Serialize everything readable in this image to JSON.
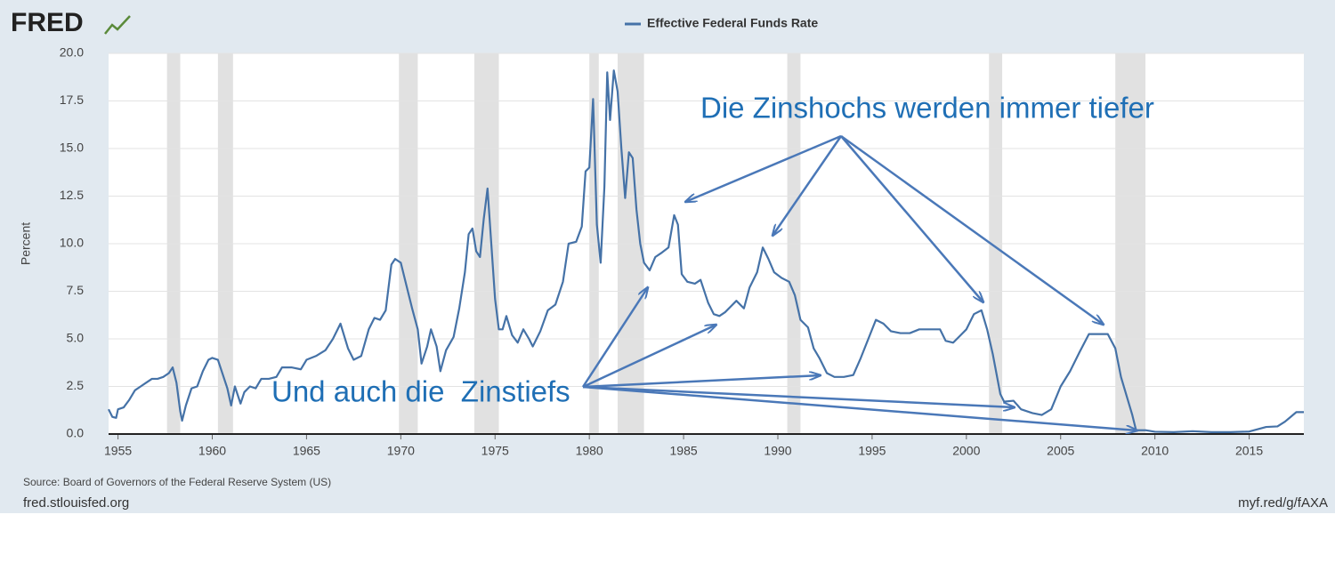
{
  "chart_data": {
    "type": "line",
    "logo": "FRED",
    "ylabel": "Percent",
    "source": "Source: Board of Governors of the Federal Reserve System (US)",
    "footer_left": "fred.stlouisfed.org",
    "footer_right": "myf.red/g/fAXA",
    "annotations": [
      "Die Zinshochs werden immer tiefer",
      "Und auch die  Zinstiefs"
    ],
    "xlim": [
      1954.5,
      2017.9
    ],
    "xticks": [
      1955,
      1960,
      1965,
      1970,
      1975,
      1980,
      1985,
      1990,
      1995,
      2000,
      2005,
      2010,
      2015
    ],
    "ylim": [
      0,
      20
    ],
    "yticks": [
      {
        "value": 0,
        "label": "0.0"
      },
      2.5,
      {
        "value": 5,
        "label": "5.0"
      },
      7.5,
      {
        "value": 10,
        "label": "10.0"
      },
      12.5,
      {
        "value": 15,
        "label": "15.0"
      },
      17.5,
      {
        "value": 20,
        "label": "20.0"
      }
    ],
    "grid": true,
    "recessions": [
      [
        1957.6,
        1958.3
      ],
      [
        1960.3,
        1961.1
      ],
      [
        1969.9,
        1970.9
      ],
      [
        1973.9,
        1975.2
      ],
      [
        1980.0,
        1980.5
      ],
      [
        1981.5,
        1982.9
      ],
      [
        1990.5,
        1991.2
      ],
      [
        2001.2,
        2001.9
      ],
      [
        2007.9,
        2009.5
      ]
    ],
    "x": [
      1954.5,
      1954.7,
      1954.9,
      1955.0,
      1955.3,
      1955.6,
      1955.9,
      1956.2,
      1956.5,
      1956.8,
      1957.1,
      1957.4,
      1957.7,
      1957.9,
      1958.1,
      1958.3,
      1958.4,
      1958.6,
      1958.9,
      1959.2,
      1959.5,
      1959.8,
      1960.0,
      1960.3,
      1960.6,
      1960.8,
      1961.0,
      1961.2,
      1961.5,
      1961.7,
      1962.0,
      1962.3,
      1962.6,
      1963.0,
      1963.4,
      1963.7,
      1964.2,
      1964.7,
      1965.0,
      1965.5,
      1966.0,
      1966.4,
      1966.8,
      1967.2,
      1967.5,
      1967.9,
      1968.3,
      1968.6,
      1968.9,
      1969.2,
      1969.5,
      1969.7,
      1970.0,
      1970.3,
      1970.6,
      1970.9,
      1971.1,
      1971.4,
      1971.6,
      1971.9,
      1972.1,
      1972.4,
      1972.8,
      1973.1,
      1973.4,
      1973.6,
      1973.8,
      1974.0,
      1974.2,
      1974.4,
      1974.6,
      1974.8,
      1975.0,
      1975.2,
      1975.4,
      1975.6,
      1975.9,
      1976.2,
      1976.5,
      1976.8,
      1977.0,
      1977.4,
      1977.8,
      1978.2,
      1978.6,
      1978.9,
      1979.3,
      1979.6,
      1979.8,
      1980.0,
      1980.2,
      1980.4,
      1980.6,
      1980.8,
      1980.95,
      1981.1,
      1981.3,
      1981.5,
      1981.7,
      1981.9,
      1982.1,
      1982.3,
      1982.5,
      1982.7,
      1982.9,
      1983.2,
      1983.5,
      1983.8,
      1984.2,
      1984.5,
      1984.7,
      1984.9,
      1985.2,
      1985.6,
      1985.9,
      1986.3,
      1986.6,
      1986.9,
      1987.2,
      1987.5,
      1987.8,
      1988.2,
      1988.5,
      1988.9,
      1989.2,
      1989.5,
      1989.8,
      1990.2,
      1990.6,
      1990.9,
      1991.2,
      1991.6,
      1991.9,
      1992.2,
      1992.6,
      1993.0,
      1993.5,
      1994.0,
      1994.4,
      1994.8,
      1995.2,
      1995.6,
      1996.0,
      1996.5,
      1997.0,
      1997.5,
      1998.0,
      1998.6,
      1998.9,
      1999.3,
      1999.7,
      2000.0,
      2000.4,
      2000.8,
      2001.1,
      2001.4,
      2001.8,
      2002.0,
      2002.5,
      2002.9,
      2003.5,
      2004.0,
      2004.5,
      2005.0,
      2005.5,
      2006.0,
      2006.5,
      2007.0,
      2007.5,
      2007.9,
      2008.2,
      2008.5,
      2008.8,
      2009.0,
      2009.5,
      2010.0,
      2011.0,
      2012.0,
      2013.0,
      2014.0,
      2015.0,
      2015.9,
      2016.5,
      2016.9,
      2017.2,
      2017.5,
      2017.9
    ],
    "series": [
      {
        "name": "Effective Federal Funds Rate",
        "color": "#4572a7",
        "values": [
          1.3,
          0.9,
          0.85,
          1.3,
          1.4,
          1.8,
          2.3,
          2.5,
          2.7,
          2.9,
          2.9,
          3.0,
          3.2,
          3.5,
          2.7,
          1.2,
          0.7,
          1.5,
          2.4,
          2.5,
          3.3,
          3.9,
          4.0,
          3.9,
          3.0,
          2.4,
          1.5,
          2.5,
          1.6,
          2.2,
          2.5,
          2.4,
          2.9,
          2.9,
          3.0,
          3.5,
          3.5,
          3.4,
          3.9,
          4.1,
          4.4,
          5.0,
          5.8,
          4.5,
          3.9,
          4.1,
          5.5,
          6.1,
          6.0,
          6.5,
          8.9,
          9.2,
          9.0,
          7.8,
          6.6,
          5.5,
          3.7,
          4.6,
          5.5,
          4.6,
          3.3,
          4.4,
          5.1,
          6.6,
          8.5,
          10.5,
          10.8,
          9.6,
          9.3,
          11.3,
          12.9,
          10.0,
          7.1,
          5.5,
          5.5,
          6.2,
          5.2,
          4.8,
          5.5,
          5.0,
          4.6,
          5.4,
          6.5,
          6.8,
          8.0,
          10.0,
          10.1,
          10.9,
          13.8,
          14.0,
          17.6,
          11.0,
          9.0,
          13.0,
          19.0,
          16.5,
          19.1,
          18.0,
          15.0,
          12.4,
          14.8,
          14.5,
          11.8,
          10.0,
          9.0,
          8.6,
          9.3,
          9.5,
          9.8,
          11.5,
          11.0,
          8.4,
          8.0,
          7.9,
          8.1,
          6.9,
          6.3,
          6.2,
          6.4,
          6.7,
          7.0,
          6.6,
          7.7,
          8.5,
          9.8,
          9.2,
          8.5,
          8.2,
          8.0,
          7.3,
          6.0,
          5.6,
          4.5,
          4.0,
          3.2,
          3.0,
          3.0,
          3.1,
          4.0,
          5.0,
          6.0,
          5.8,
          5.4,
          5.3,
          5.3,
          5.5,
          5.5,
          5.5,
          4.9,
          4.8,
          5.2,
          5.5,
          6.3,
          6.5,
          5.5,
          4.2,
          2.1,
          1.7,
          1.75,
          1.3,
          1.1,
          1.0,
          1.3,
          2.5,
          3.3,
          4.3,
          5.25,
          5.25,
          5.25,
          4.5,
          3.0,
          2.0,
          1.0,
          0.2,
          0.2,
          0.12,
          0.1,
          0.15,
          0.1,
          0.1,
          0.13,
          0.37,
          0.4,
          0.65,
          0.9,
          1.15,
          1.15
        ]
      }
    ]
  }
}
